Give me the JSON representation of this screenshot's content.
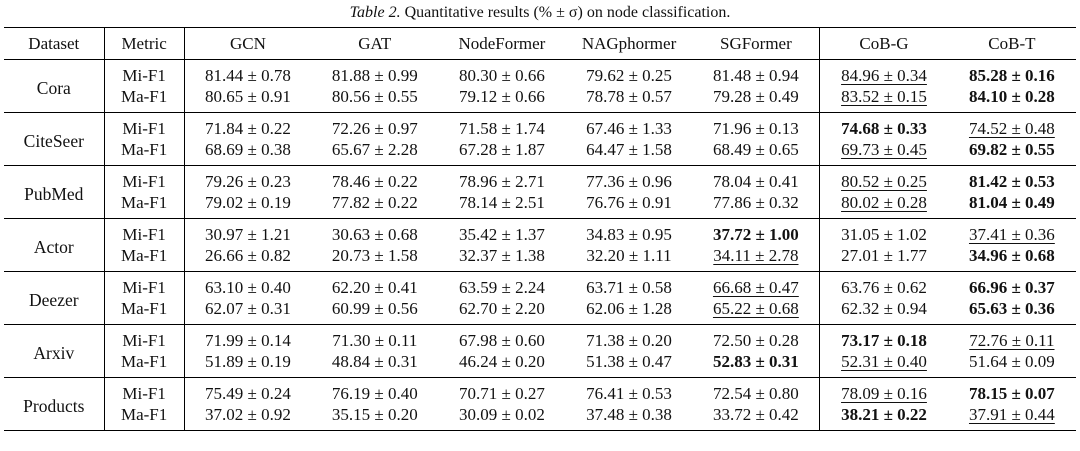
{
  "caption": {
    "label": "Table 2.",
    "text": "Quantitative results (% ± σ) on node classification."
  },
  "headers": {
    "dataset": "Dataset",
    "metric": "Metric",
    "methods": [
      "GCN",
      "GAT",
      "NodeFormer",
      "NAGphormer",
      "SGFormer",
      "CoB-G",
      "CoB-T"
    ]
  },
  "rows": [
    {
      "dataset": "Cora",
      "metrics": [
        {
          "name": "Mi-F1",
          "cells": [
            {
              "v": "81.44 ± 0.78",
              "s": ""
            },
            {
              "v": "81.88 ± 0.99",
              "s": ""
            },
            {
              "v": "80.30 ± 0.66",
              "s": ""
            },
            {
              "v": "79.62 ± 0.25",
              "s": ""
            },
            {
              "v": "81.48 ± 0.94",
              "s": ""
            },
            {
              "v": "84.96 ± 0.34",
              "s": "u"
            },
            {
              "v": "85.28 ± 0.16",
              "s": "b"
            }
          ]
        },
        {
          "name": "Ma-F1",
          "cells": [
            {
              "v": "80.65 ± 0.91",
              "s": ""
            },
            {
              "v": "80.56 ± 0.55",
              "s": ""
            },
            {
              "v": "79.12 ± 0.66",
              "s": ""
            },
            {
              "v": "78.78 ± 0.57",
              "s": ""
            },
            {
              "v": "79.28 ± 0.49",
              "s": ""
            },
            {
              "v": "83.52 ± 0.15",
              "s": "u"
            },
            {
              "v": "84.10 ± 0.28",
              "s": "b"
            }
          ]
        }
      ]
    },
    {
      "dataset": "CiteSeer",
      "metrics": [
        {
          "name": "Mi-F1",
          "cells": [
            {
              "v": "71.84 ± 0.22",
              "s": ""
            },
            {
              "v": "72.26 ± 0.97",
              "s": ""
            },
            {
              "v": "71.58 ± 1.74",
              "s": ""
            },
            {
              "v": "67.46 ± 1.33",
              "s": ""
            },
            {
              "v": "71.96 ± 0.13",
              "s": ""
            },
            {
              "v": "74.68 ± 0.33",
              "s": "b"
            },
            {
              "v": "74.52 ± 0.48",
              "s": "u"
            }
          ]
        },
        {
          "name": "Ma-F1",
          "cells": [
            {
              "v": "68.69 ± 0.38",
              "s": ""
            },
            {
              "v": "65.67 ± 2.28",
              "s": ""
            },
            {
              "v": "67.28 ± 1.87",
              "s": ""
            },
            {
              "v": "64.47 ± 1.58",
              "s": ""
            },
            {
              "v": "68.49 ± 0.65",
              "s": ""
            },
            {
              "v": "69.73 ± 0.45",
              "s": "u"
            },
            {
              "v": "69.82 ± 0.55",
              "s": "b"
            }
          ]
        }
      ]
    },
    {
      "dataset": "PubMed",
      "metrics": [
        {
          "name": "Mi-F1",
          "cells": [
            {
              "v": "79.26 ± 0.23",
              "s": ""
            },
            {
              "v": "78.46 ± 0.22",
              "s": ""
            },
            {
              "v": "78.96 ± 2.71",
              "s": ""
            },
            {
              "v": "77.36 ± 0.96",
              "s": ""
            },
            {
              "v": "78.04 ± 0.41",
              "s": ""
            },
            {
              "v": "80.52 ± 0.25",
              "s": "u"
            },
            {
              "v": "81.42 ± 0.53",
              "s": "b"
            }
          ]
        },
        {
          "name": "Ma-F1",
          "cells": [
            {
              "v": "79.02 ± 0.19",
              "s": ""
            },
            {
              "v": "77.82 ± 0.22",
              "s": ""
            },
            {
              "v": "78.14 ± 2.51",
              "s": ""
            },
            {
              "v": "76.76 ± 0.91",
              "s": ""
            },
            {
              "v": "77.86 ± 0.32",
              "s": ""
            },
            {
              "v": "80.02 ± 0.28",
              "s": "u"
            },
            {
              "v": "81.04 ± 0.49",
              "s": "b"
            }
          ]
        }
      ]
    },
    {
      "dataset": "Actor",
      "metrics": [
        {
          "name": "Mi-F1",
          "cells": [
            {
              "v": "30.97 ± 1.21",
              "s": ""
            },
            {
              "v": "30.63 ± 0.68",
              "s": ""
            },
            {
              "v": "35.42 ± 1.37",
              "s": ""
            },
            {
              "v": "34.83 ± 0.95",
              "s": ""
            },
            {
              "v": "37.72 ± 1.00",
              "s": "b"
            },
            {
              "v": "31.05 ± 1.02",
              "s": ""
            },
            {
              "v": "37.41 ± 0.36",
              "s": "u"
            }
          ]
        },
        {
          "name": "Ma-F1",
          "cells": [
            {
              "v": "26.66 ± 0.82",
              "s": ""
            },
            {
              "v": "20.73 ± 1.58",
              "s": ""
            },
            {
              "v": "32.37 ± 1.38",
              "s": ""
            },
            {
              "v": "32.20 ± 1.11",
              "s": ""
            },
            {
              "v": "34.11 ± 2.78",
              "s": "u"
            },
            {
              "v": "27.01 ± 1.77",
              "s": ""
            },
            {
              "v": "34.96 ± 0.68",
              "s": "b"
            }
          ]
        }
      ]
    },
    {
      "dataset": "Deezer",
      "metrics": [
        {
          "name": "Mi-F1",
          "cells": [
            {
              "v": "63.10 ± 0.40",
              "s": ""
            },
            {
              "v": "62.20 ± 0.41",
              "s": ""
            },
            {
              "v": "63.59 ± 2.24",
              "s": ""
            },
            {
              "v": "63.71 ± 0.58",
              "s": ""
            },
            {
              "v": "66.68 ± 0.47",
              "s": "u"
            },
            {
              "v": "63.76 ± 0.62",
              "s": ""
            },
            {
              "v": "66.96 ± 0.37",
              "s": "b"
            }
          ]
        },
        {
          "name": "Ma-F1",
          "cells": [
            {
              "v": "62.07 ± 0.31",
              "s": ""
            },
            {
              "v": "60.99 ± 0.56",
              "s": ""
            },
            {
              "v": "62.70 ± 2.20",
              "s": ""
            },
            {
              "v": "62.06 ± 1.28",
              "s": ""
            },
            {
              "v": "65.22 ± 0.68",
              "s": "u"
            },
            {
              "v": "62.32 ± 0.94",
              "s": ""
            },
            {
              "v": "65.63 ± 0.36",
              "s": "b"
            }
          ]
        }
      ]
    },
    {
      "dataset": "Arxiv",
      "metrics": [
        {
          "name": "Mi-F1",
          "cells": [
            {
              "v": "71.99 ± 0.14",
              "s": ""
            },
            {
              "v": "71.30 ± 0.11",
              "s": ""
            },
            {
              "v": "67.98 ± 0.60",
              "s": ""
            },
            {
              "v": "71.38 ± 0.20",
              "s": ""
            },
            {
              "v": "72.50 ± 0.28",
              "s": ""
            },
            {
              "v": "73.17 ± 0.18",
              "s": "b"
            },
            {
              "v": "72.76 ± 0.11",
              "s": "u"
            }
          ]
        },
        {
          "name": "Ma-F1",
          "cells": [
            {
              "v": "51.89 ± 0.19",
              "s": ""
            },
            {
              "v": "48.84 ± 0.31",
              "s": ""
            },
            {
              "v": "46.24 ± 0.20",
              "s": ""
            },
            {
              "v": "51.38 ± 0.47",
              "s": ""
            },
            {
              "v": "52.83 ± 0.31",
              "s": "b"
            },
            {
              "v": "52.31 ± 0.40",
              "s": "u"
            },
            {
              "v": "51.64 ± 0.09",
              "s": ""
            }
          ]
        }
      ]
    },
    {
      "dataset": "Products",
      "metrics": [
        {
          "name": "Mi-F1",
          "cells": [
            {
              "v": "75.49 ± 0.24",
              "s": ""
            },
            {
              "v": "76.19 ± 0.40",
              "s": ""
            },
            {
              "v": "70.71 ± 0.27",
              "s": ""
            },
            {
              "v": "76.41 ± 0.53",
              "s": ""
            },
            {
              "v": "72.54 ± 0.80",
              "s": ""
            },
            {
              "v": "78.09 ± 0.16",
              "s": "u"
            },
            {
              "v": "78.15 ± 0.07",
              "s": "b"
            }
          ]
        },
        {
          "name": "Ma-F1",
          "cells": [
            {
              "v": "37.02 ± 0.92",
              "s": ""
            },
            {
              "v": "35.15 ± 0.20",
              "s": ""
            },
            {
              "v": "30.09 ± 0.02",
              "s": ""
            },
            {
              "v": "37.48 ± 0.38",
              "s": ""
            },
            {
              "v": "33.72 ± 0.42",
              "s": ""
            },
            {
              "v": "38.21 ± 0.22",
              "s": "b"
            },
            {
              "v": "37.91 ± 0.44",
              "s": "u"
            }
          ]
        }
      ]
    }
  ]
}
